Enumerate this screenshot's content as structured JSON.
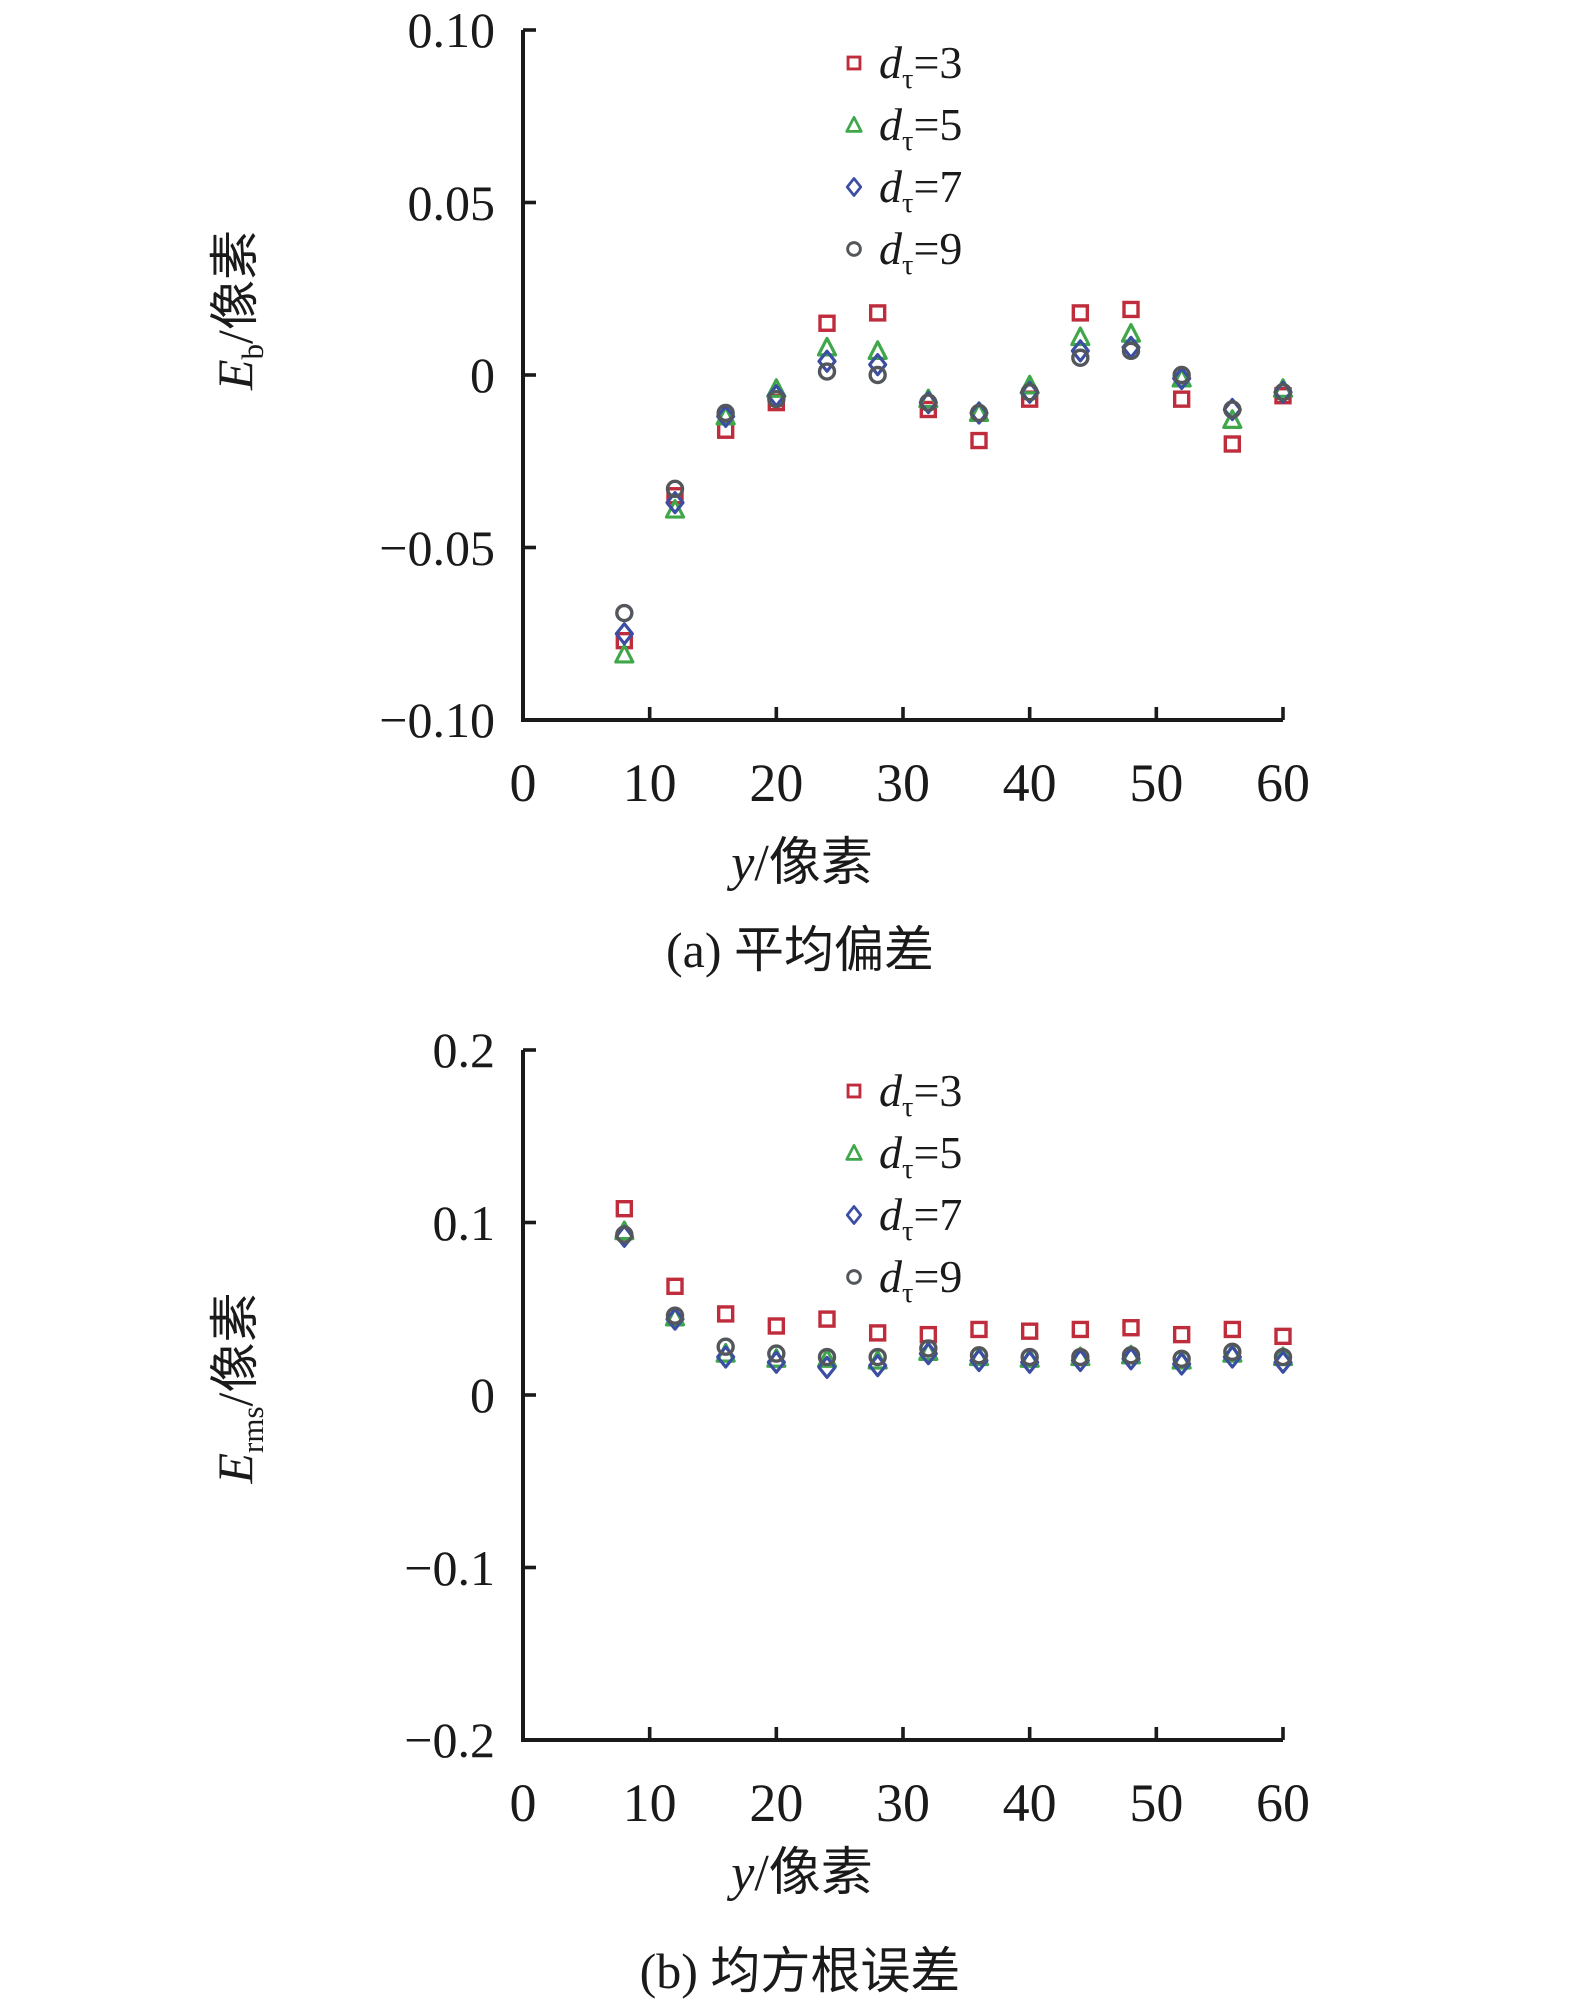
{
  "figure": {
    "background": "#ffffff",
    "marker_colors": {
      "d3": "#bf2c3c",
      "d5": "#3fa74a",
      "d7": "#3b4ea3",
      "d9": "#53575c"
    }
  },
  "chart_data": [
    {
      "type": "scatter",
      "panel": "a",
      "title": "(a) 平均偏差",
      "xlabel_var": "y",
      "xlabel_rest": "/像素",
      "ylabel_var": "E",
      "ylabel_sub": "b",
      "ylabel_rest": "/像素",
      "xlim": [
        0,
        60
      ],
      "ylim": [
        -0.1,
        0.1
      ],
      "grid": false,
      "legend_position": "top-right-inside",
      "xticks": [
        {
          "v": 0,
          "label": "0"
        },
        {
          "v": 10,
          "label": "10"
        },
        {
          "v": 20,
          "label": "20"
        },
        {
          "v": 30,
          "label": "30"
        },
        {
          "v": 40,
          "label": "40"
        },
        {
          "v": 50,
          "label": "50"
        },
        {
          "v": 60,
          "label": "60"
        }
      ],
      "yticks": [
        {
          "v": 0.1,
          "label": "0.10"
        },
        {
          "v": 0.05,
          "label": "0.05"
        },
        {
          "v": 0,
          "label": "0"
        },
        {
          "v": -0.05,
          "label": "−0.05"
        },
        {
          "v": -0.1,
          "label": "−0.10"
        }
      ],
      "x": [
        8,
        12,
        16,
        20,
        24,
        28,
        32,
        36,
        40,
        44,
        48,
        52,
        56,
        60
      ],
      "series": [
        {
          "name_var": "d",
          "name_sub": "τ",
          "name_eq": "=3",
          "marker": "square",
          "color": "#bf2c3c",
          "values": [
            -0.077,
            -0.035,
            -0.016,
            -0.008,
            0.015,
            0.018,
            -0.01,
            -0.019,
            -0.007,
            0.018,
            0.019,
            -0.007,
            -0.02,
            -0.006
          ]
        },
        {
          "name_var": "d",
          "name_sub": "τ",
          "name_eq": "=5",
          "marker": "triangle",
          "color": "#3fa74a",
          "values": [
            -0.081,
            -0.039,
            -0.012,
            -0.004,
            0.008,
            0.007,
            -0.007,
            -0.011,
            -0.003,
            0.011,
            0.012,
            -0.001,
            -0.013,
            -0.004
          ]
        },
        {
          "name_var": "d",
          "name_sub": "τ",
          "name_eq": "=7",
          "marker": "diamond",
          "color": "#3b4ea3",
          "values": [
            -0.075,
            -0.037,
            -0.012,
            -0.006,
            0.004,
            0.003,
            -0.008,
            -0.011,
            -0.005,
            0.007,
            0.008,
            -0.001,
            -0.01,
            -0.005
          ]
        },
        {
          "name_var": "d",
          "name_sub": "τ",
          "name_eq": "=9",
          "marker": "circle",
          "color": "#53575c",
          "values": [
            -0.069,
            -0.033,
            -0.011,
            -0.007,
            0.001,
            0.0,
            -0.008,
            -0.011,
            -0.005,
            0.005,
            0.007,
            0.0,
            -0.01,
            -0.005
          ]
        }
      ]
    },
    {
      "type": "scatter",
      "panel": "b",
      "title": "(b) 均方根误差",
      "xlabel_var": "y",
      "xlabel_rest": "/像素",
      "ylabel_var": "E",
      "ylabel_sub": "rms",
      "ylabel_rest": "/像素",
      "xlim": [
        0,
        60
      ],
      "ylim": [
        -0.2,
        0.2
      ],
      "grid": false,
      "legend_position": "top-right-inside",
      "xticks": [
        {
          "v": 0,
          "label": "0"
        },
        {
          "v": 10,
          "label": "10"
        },
        {
          "v": 20,
          "label": "20"
        },
        {
          "v": 30,
          "label": "30"
        },
        {
          "v": 40,
          "label": "40"
        },
        {
          "v": 50,
          "label": "50"
        },
        {
          "v": 60,
          "label": "60"
        }
      ],
      "yticks": [
        {
          "v": 0.2,
          "label": "0.2"
        },
        {
          "v": 0.1,
          "label": "0.1"
        },
        {
          "v": 0,
          "label": "0"
        },
        {
          "v": -0.1,
          "label": "−0.1"
        },
        {
          "v": -0.2,
          "label": "−0.2"
        }
      ],
      "x": [
        8,
        12,
        16,
        20,
        24,
        28,
        32,
        36,
        40,
        44,
        48,
        52,
        56,
        60
      ],
      "series": [
        {
          "name_var": "d",
          "name_sub": "τ",
          "name_eq": "=3",
          "marker": "square",
          "color": "#bf2c3c",
          "values": [
            0.108,
            0.063,
            0.047,
            0.04,
            0.044,
            0.036,
            0.035,
            0.038,
            0.037,
            0.038,
            0.039,
            0.035,
            0.038,
            0.034
          ]
        },
        {
          "name_var": "d",
          "name_sub": "τ",
          "name_eq": "=5",
          "marker": "triangle",
          "color": "#3fa74a",
          "values": [
            0.095,
            0.045,
            0.024,
            0.021,
            0.021,
            0.02,
            0.025,
            0.022,
            0.021,
            0.022,
            0.023,
            0.02,
            0.024,
            0.022
          ]
        },
        {
          "name_var": "d",
          "name_sub": "τ",
          "name_eq": "=7",
          "marker": "diamond",
          "color": "#3b4ea3",
          "values": [
            0.092,
            0.044,
            0.022,
            0.019,
            0.016,
            0.017,
            0.024,
            0.02,
            0.019,
            0.02,
            0.021,
            0.018,
            0.022,
            0.019
          ]
        },
        {
          "name_var": "d",
          "name_sub": "τ",
          "name_eq": "=9",
          "marker": "circle",
          "color": "#53575c",
          "values": [
            0.093,
            0.046,
            0.028,
            0.024,
            0.022,
            0.022,
            0.027,
            0.023,
            0.022,
            0.022,
            0.023,
            0.021,
            0.025,
            0.022
          ]
        }
      ]
    }
  ]
}
